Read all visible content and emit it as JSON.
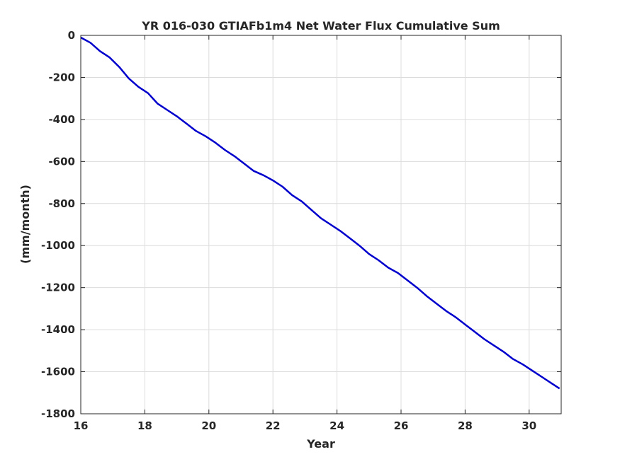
{
  "chart_data": {
    "type": "line",
    "title": "YR 016-030 GTIAFb1m4 Net Water Flux Cumulative Sum",
    "xlabel": "Year",
    "ylabel": "(mm/month)",
    "xlim": [
      16,
      31
    ],
    "ylim": [
      -1800,
      0
    ],
    "xticks": [
      16,
      18,
      20,
      22,
      24,
      26,
      28,
      30
    ],
    "xtick_labels": [
      "16",
      "18",
      "20",
      "22",
      "24",
      "26",
      "28",
      "30"
    ],
    "yticks": [
      0,
      -200,
      -400,
      -600,
      -800,
      -1000,
      -1200,
      -1400,
      -1600,
      -1800
    ],
    "ytick_labels": [
      "0",
      "-200",
      "-400",
      "-600",
      "-800",
      "-1000",
      "-1200",
      "-1400",
      "-1600",
      "-1800"
    ],
    "grid": true,
    "series": [
      {
        "color": "#0000cc",
        "x": [
          16.0,
          16.3,
          16.6,
          16.9,
          17.2,
          17.5,
          17.8,
          18.1,
          18.4,
          18.7,
          19.0,
          19.3,
          19.6,
          19.9,
          20.2,
          20.5,
          20.8,
          21.1,
          21.4,
          21.7,
          22.0,
          22.3,
          22.6,
          22.9,
          23.2,
          23.5,
          23.8,
          24.1,
          24.4,
          24.7,
          25.0,
          25.3,
          25.6,
          25.9,
          26.2,
          26.5,
          26.8,
          27.1,
          27.4,
          27.7,
          28.0,
          28.3,
          28.6,
          28.9,
          29.2,
          29.5,
          29.8,
          30.1,
          30.4,
          30.7,
          30.95
        ],
        "y": [
          -10,
          -35,
          -75,
          -105,
          -150,
          -205,
          -245,
          -275,
          -325,
          -355,
          -385,
          -420,
          -455,
          -480,
          -510,
          -545,
          -575,
          -610,
          -645,
          -665,
          -690,
          -720,
          -760,
          -790,
          -830,
          -870,
          -900,
          -930,
          -965,
          -1000,
          -1040,
          -1070,
          -1105,
          -1130,
          -1165,
          -1200,
          -1240,
          -1275,
          -1310,
          -1340,
          -1375,
          -1410,
          -1445,
          -1475,
          -1505,
          -1540,
          -1565,
          -1595,
          -1625,
          -1655,
          -1680
        ]
      }
    ]
  }
}
